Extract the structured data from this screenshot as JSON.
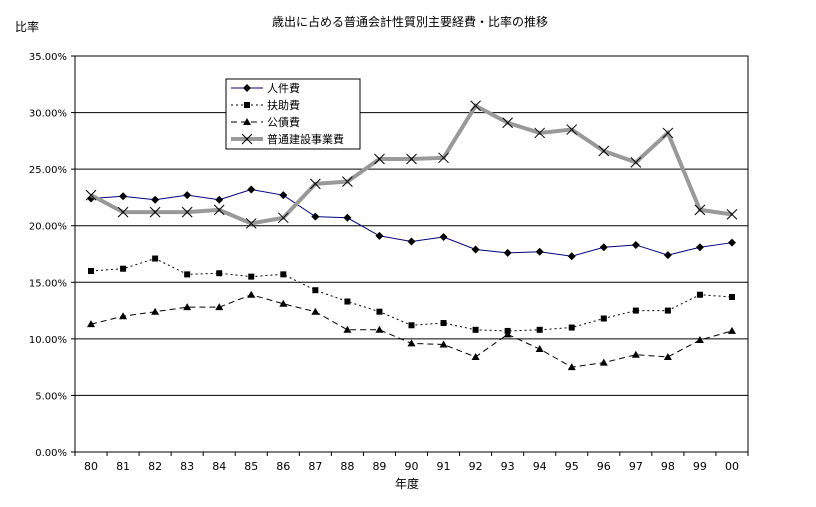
{
  "chart_data": {
    "type": "line",
    "title": "歳出に占める普通会計性質別主要経費・比率の推移",
    "ylabel": "比率",
    "xlabel": "年度",
    "categories": [
      "80",
      "81",
      "82",
      "83",
      "84",
      "85",
      "86",
      "87",
      "88",
      "89",
      "90",
      "91",
      "92",
      "93",
      "94",
      "95",
      "96",
      "97",
      "98",
      "99",
      "00"
    ],
    "ylim": [
      0,
      35
    ],
    "yticks": [
      0,
      5,
      10,
      15,
      20,
      25,
      30,
      35
    ],
    "ytick_labels": [
      "0.00%",
      "5.00%",
      "10.00%",
      "15.00%",
      "20.00%",
      "25.00%",
      "30.00%",
      "35.00%"
    ],
    "grid": "horizontal",
    "legend_position": "top-left",
    "series": [
      {
        "name": "人件費",
        "marker": "diamond",
        "line": "solid",
        "color": "#000080",
        "values": [
          22.4,
          22.6,
          22.3,
          22.7,
          22.3,
          23.2,
          22.7,
          20.8,
          20.7,
          19.1,
          18.6,
          19.0,
          17.9,
          17.6,
          17.7,
          17.3,
          18.1,
          18.3,
          17.4,
          18.1,
          18.5
        ]
      },
      {
        "name": "扶助費",
        "marker": "square",
        "line": "dotted",
        "color": "#000000",
        "values": [
          16.0,
          16.2,
          17.1,
          15.7,
          15.8,
          15.5,
          15.7,
          14.3,
          13.3,
          12.4,
          11.2,
          11.4,
          10.8,
          10.7,
          10.8,
          11.0,
          11.8,
          12.5,
          12.5,
          13.9,
          13.7
        ]
      },
      {
        "name": "公債費",
        "marker": "triangle",
        "line": "dashed",
        "color": "#000000",
        "values": [
          11.3,
          12.0,
          12.4,
          12.8,
          12.8,
          13.9,
          13.1,
          12.4,
          10.8,
          10.8,
          9.6,
          9.5,
          8.4,
          10.4,
          9.1,
          7.5,
          7.9,
          8.6,
          8.4,
          9.9,
          10.7
        ]
      },
      {
        "name": "普通建設事業費",
        "marker": "x",
        "line": "thick-gray",
        "color": "#999999",
        "values": [
          22.7,
          21.2,
          21.2,
          21.2,
          21.4,
          20.2,
          20.7,
          23.7,
          23.9,
          25.9,
          25.9,
          26.0,
          30.6,
          29.1,
          28.2,
          28.5,
          26.6,
          25.6,
          28.2,
          21.4,
          21.0
        ]
      }
    ]
  }
}
